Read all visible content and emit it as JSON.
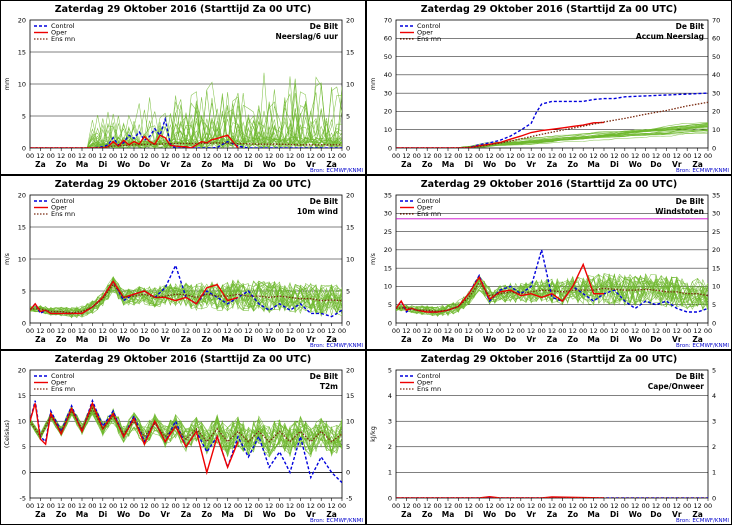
{
  "days": [
    "Za",
    "Zo",
    "Ma",
    "Di",
    "Wo",
    "Do",
    "Vr",
    "Za",
    "Zo",
    "Ma",
    "Di",
    "Wo",
    "Do",
    "Vr",
    "Za"
  ],
  "hour_labels": [
    "00",
    "12"
  ],
  "legend": [
    "Control",
    "Oper",
    "Ens mn"
  ],
  "source": "Bron: ECMWF/KNMI",
  "colors": {
    "control": "#0000dd",
    "oper": "#ee0000",
    "ensmean": "#7a2a10",
    "members": "#6fb92e",
    "grid": "#000000",
    "hline": "#cc00cc"
  },
  "chart_data": [
    {
      "type": "line",
      "title": "Zaterdag 29 Oktober 2016      (Starttijd Za 00 UTC)",
      "location": "De Bilt",
      "variable": "Neerslag/6 uur",
      "ylabel": "mm",
      "ylim": [
        0,
        20
      ],
      "yticks": [
        0,
        5,
        10,
        15,
        20
      ],
      "x_range_h": [
        0,
        360
      ],
      "series": [
        {
          "name": "Control",
          "x": [
            0,
            48,
            72,
            84,
            90,
            96,
            102,
            108,
            114,
            120,
            126,
            132,
            138,
            144,
            150,
            156,
            162,
            168,
            174,
            180,
            186,
            192,
            198,
            204,
            210,
            216,
            228,
            240,
            252,
            264,
            276,
            288,
            300,
            312,
            324,
            336,
            348,
            360
          ],
          "values": [
            0,
            0,
            0,
            0.2,
            0.5,
            1.6,
            0.5,
            0.8,
            2,
            1.5,
            2.5,
            1.2,
            1.8,
            3,
            2,
            4.5,
            0.5,
            0,
            0,
            0.2,
            0,
            0,
            0,
            0,
            0,
            0.1,
            1,
            0.3,
            0,
            0,
            0,
            0,
            0,
            0,
            0,
            0,
            0,
            0
          ]
        },
        {
          "name": "Oper",
          "x": [
            0,
            48,
            72,
            84,
            90,
            96,
            102,
            108,
            114,
            120,
            126,
            132,
            138,
            144,
            150,
            156,
            162,
            168,
            174,
            180,
            186,
            192,
            198,
            204,
            210,
            216,
            228,
            240
          ],
          "values": [
            0,
            0,
            0,
            0,
            0.2,
            1,
            0.3,
            1.2,
            0.5,
            1,
            0.6,
            1.8,
            1,
            0.6,
            2,
            1.6,
            0.4,
            0.3,
            0.2,
            0.2,
            0,
            0.5,
            1,
            0.8,
            1.3,
            1.5,
            2,
            0
          ]
        },
        {
          "name": "Ens mn",
          "x": [
            0,
            48,
            72,
            84,
            96,
            120,
            144,
            168,
            192,
            216,
            240,
            264,
            288,
            312,
            336,
            360
          ],
          "values": [
            0,
            0,
            0,
            0.1,
            0.3,
            0.5,
            0.6,
            0.7,
            0.7,
            0.8,
            0.7,
            0.6,
            0.6,
            0.5,
            0.5,
            0.5
          ]
        }
      ]
    },
    {
      "type": "line",
      "title": "Zaterdag 29 Oktober 2016      (Starttijd Za 00 UTC)",
      "location": "De Bilt",
      "variable": "Accum Neerslag",
      "ylabel": "mm",
      "ylim": [
        0,
        70
      ],
      "yticks": [
        0,
        10,
        20,
        30,
        40,
        50,
        60,
        70
      ],
      "x_range_h": [
        0,
        360
      ],
      "series": [
        {
          "name": "Control",
          "x": [
            0,
            72,
            84,
            96,
            108,
            120,
            132,
            144,
            156,
            162,
            168,
            180,
            192,
            204,
            216,
            228,
            240,
            252,
            264,
            288,
            312,
            336,
            360
          ],
          "values": [
            0,
            0,
            0.2,
            1.8,
            2.8,
            4.2,
            6.5,
            9.8,
            13.5,
            19.5,
            24,
            25.5,
            25.5,
            25.5,
            25.5,
            26.5,
            27,
            27,
            28,
            28.5,
            29,
            29.5,
            30
          ]
        },
        {
          "name": "Oper",
          "x": [
            0,
            72,
            84,
            96,
            108,
            120,
            132,
            144,
            156,
            168,
            180,
            192,
            204,
            216,
            228,
            240
          ],
          "values": [
            0,
            0,
            0.1,
            1.2,
            2,
            3,
            4.8,
            6.5,
            8.5,
            9.5,
            10.2,
            11,
            11.8,
            12.5,
            13.8,
            14
          ]
        },
        {
          "name": "Ens mn",
          "x": [
            0,
            72,
            96,
            120,
            144,
            168,
            192,
            216,
            240,
            264,
            288,
            312,
            336,
            360
          ],
          "values": [
            0,
            0,
            0.8,
            2.6,
            5,
            7.5,
            9.8,
            12,
            14.2,
            16.2,
            18.5,
            20.5,
            23,
            25
          ]
        }
      ]
    },
    {
      "type": "line",
      "title": "Zaterdag 29 Oktober 2016      (Starttijd Za 00 UTC)",
      "location": "De Bilt",
      "variable": "10m wind",
      "ylabel": "m/s",
      "ylim": [
        0,
        20
      ],
      "yticks": [
        0,
        5,
        10,
        15,
        20
      ],
      "x_range_h": [
        0,
        360
      ],
      "series": [
        {
          "name": "Control",
          "x": [
            0,
            6,
            12,
            18,
            24,
            36,
            48,
            60,
            72,
            84,
            96,
            108,
            120,
            132,
            144,
            156,
            168,
            180,
            192,
            204,
            216,
            228,
            240,
            252,
            264,
            276,
            288,
            300,
            312,
            324,
            336,
            348,
            360
          ],
          "values": [
            2,
            3,
            1.5,
            2,
            1.5,
            1.5,
            1.5,
            1.5,
            2.5,
            4,
            6.5,
            3.5,
            4.5,
            5,
            4,
            5.5,
            9,
            4,
            3,
            5,
            4,
            3,
            4,
            5,
            3,
            2,
            3,
            2,
            3,
            1.5,
            1.5,
            1,
            2
          ]
        },
        {
          "name": "Oper",
          "x": [
            0,
            6,
            12,
            18,
            24,
            36,
            48,
            60,
            72,
            84,
            96,
            108,
            120,
            132,
            144,
            156,
            168,
            180,
            192,
            204,
            216,
            228,
            240
          ],
          "values": [
            2,
            3,
            1.8,
            2,
            1.5,
            1.5,
            1.5,
            1.5,
            2.5,
            4,
            6.5,
            4,
            4.5,
            5,
            4,
            4,
            3.5,
            4,
            3,
            5.5,
            6,
            3.5,
            4
          ]
        },
        {
          "name": "Ens mn",
          "x": [
            0,
            12,
            24,
            36,
            48,
            60,
            72,
            84,
            96,
            108,
            120,
            132,
            144,
            156,
            168,
            180,
            192,
            204,
            216,
            228,
            240,
            252,
            264,
            276,
            288,
            300,
            312,
            324,
            336,
            348,
            360
          ],
          "values": [
            2.2,
            2.2,
            1.8,
            1.8,
            1.6,
            1.8,
            2.5,
            3.8,
            6,
            4,
            4.2,
            4.5,
            4,
            4.2,
            4.5,
            4.4,
            4,
            4.5,
            4.2,
            4.2,
            4.5,
            4.2,
            4.2,
            4,
            4.2,
            4,
            3.8,
            3.8,
            3.5,
            3.6,
            3.5
          ]
        }
      ]
    },
    {
      "type": "line",
      "title": "Zaterdag 29 Oktober 2016      (Starttijd Za 00 UTC)",
      "location": "De Bilt",
      "variable": "Windstoten",
      "ylabel": "m/s",
      "ylim": [
        0,
        35
      ],
      "yticks": [
        0,
        5,
        10,
        15,
        20,
        25,
        30,
        35
      ],
      "x_range_h": [
        0,
        360
      ],
      "threshold": 28.5,
      "series": [
        {
          "name": "Control",
          "x": [
            0,
            6,
            12,
            18,
            24,
            36,
            48,
            60,
            72,
            84,
            96,
            108,
            120,
            132,
            144,
            156,
            168,
            180,
            192,
            204,
            216,
            228,
            240,
            252,
            264,
            276,
            288,
            300,
            312,
            324,
            336,
            348,
            360
          ],
          "values": [
            4,
            6,
            3,
            4,
            3.5,
            3,
            3,
            3.5,
            4.5,
            8,
            13,
            6,
            9,
            10,
            8,
            10,
            20,
            7,
            6,
            10,
            8,
            6,
            8,
            9,
            6,
            4,
            6,
            5,
            6,
            4,
            3,
            3,
            4
          ]
        },
        {
          "name": "Oper",
          "x": [
            0,
            6,
            12,
            18,
            24,
            36,
            48,
            60,
            72,
            84,
            96,
            108,
            120,
            132,
            144,
            156,
            168,
            180,
            192,
            204,
            216,
            228,
            240
          ],
          "values": [
            4,
            6,
            3.5,
            4,
            3.5,
            3,
            3,
            3.5,
            4.5,
            8,
            12.5,
            6.5,
            8.5,
            9,
            7.5,
            8,
            7,
            8,
            6,
            10,
            16,
            8,
            8
          ]
        },
        {
          "name": "Ens mn",
          "x": [
            0,
            12,
            24,
            36,
            48,
            60,
            72,
            84,
            96,
            108,
            120,
            132,
            144,
            156,
            168,
            180,
            192,
            204,
            216,
            228,
            240,
            252,
            264,
            276,
            288,
            300,
            312,
            324,
            336,
            348,
            360
          ],
          "values": [
            4,
            4.2,
            3.5,
            3.5,
            3.2,
            3.5,
            4.5,
            7,
            11,
            7.5,
            8,
            8.5,
            8,
            8.5,
            9,
            8.8,
            8.5,
            9,
            9,
            9,
            9.5,
            9.2,
            9,
            9,
            9.2,
            9,
            8.5,
            8.5,
            8,
            8,
            7.5
          ]
        }
      ]
    },
    {
      "type": "line",
      "title": "Zaterdag 29 Oktober 2016      (Starttijd Za 00 UTC)",
      "location": "De Bilt",
      "variable": "T2m",
      "ylabel": "(Celsius)",
      "ylim": [
        -5,
        20
      ],
      "yticks": [
        -5,
        0,
        5,
        10,
        15,
        20
      ],
      "x_range_h": [
        0,
        360
      ],
      "series": [
        {
          "name": "Control",
          "x": [
            0,
            6,
            12,
            18,
            24,
            36,
            48,
            60,
            72,
            84,
            96,
            108,
            120,
            132,
            144,
            156,
            168,
            180,
            192,
            204,
            216,
            228,
            240,
            252,
            264,
            276,
            288,
            300,
            312,
            324,
            336,
            348,
            360
          ],
          "values": [
            10,
            14,
            7,
            6,
            12,
            8,
            13,
            8,
            14,
            9,
            12,
            7,
            11,
            6,
            10,
            6,
            10,
            5,
            8,
            4,
            7,
            1,
            7,
            3,
            7,
            1,
            4,
            0,
            7,
            -1,
            3,
            0,
            -2
          ]
        },
        {
          "name": "Oper",
          "x": [
            0,
            6,
            12,
            18,
            24,
            36,
            48,
            60,
            72,
            84,
            96,
            108,
            120,
            132,
            144,
            156,
            168,
            180,
            192,
            204,
            216,
            228,
            240
          ],
          "values": [
            10,
            13.5,
            6.5,
            5.5,
            11.5,
            7.5,
            12.5,
            8,
            13.5,
            8.5,
            11.5,
            7,
            10.5,
            5.5,
            10,
            6,
            9,
            5,
            8,
            0,
            7,
            1,
            6
          ]
        },
        {
          "name": "Ens mn",
          "x": [
            0,
            12,
            24,
            36,
            48,
            60,
            72,
            84,
            96,
            108,
            120,
            132,
            144,
            156,
            168,
            180,
            192,
            204,
            216,
            228,
            240,
            252,
            264,
            276,
            288,
            300,
            312,
            324,
            336,
            348,
            360
          ],
          "values": [
            10,
            7,
            11,
            8,
            12,
            8.5,
            12.5,
            8.5,
            11,
            7.5,
            10,
            7,
            9.5,
            7,
            9,
            6.5,
            8.5,
            6,
            8.5,
            6,
            8,
            6,
            8,
            6,
            8,
            6,
            8,
            6,
            8,
            6,
            7.5
          ]
        }
      ]
    },
    {
      "type": "line",
      "title": "Zaterdag 29 Oktober 2016      (Starttijd Za 00 UTC)",
      "location": "De Bilt",
      "variable": "Cape/Onweer",
      "ylabel": "kJ/kg",
      "ylim": [
        0,
        5
      ],
      "yticks": [
        0,
        1,
        2,
        3,
        4,
        5
      ],
      "x_range_h": [
        0,
        360
      ],
      "series": [
        {
          "name": "Control",
          "x": [
            0,
            360
          ],
          "values": [
            0,
            0
          ]
        },
        {
          "name": "Oper",
          "x": [
            0,
            96,
            108,
            120,
            168,
            180,
            240
          ],
          "values": [
            0,
            0,
            0.05,
            0,
            0,
            0.04,
            0
          ]
        },
        {
          "name": "Ens mn",
          "x": [
            0,
            360
          ],
          "values": [
            0,
            0
          ]
        }
      ]
    }
  ]
}
